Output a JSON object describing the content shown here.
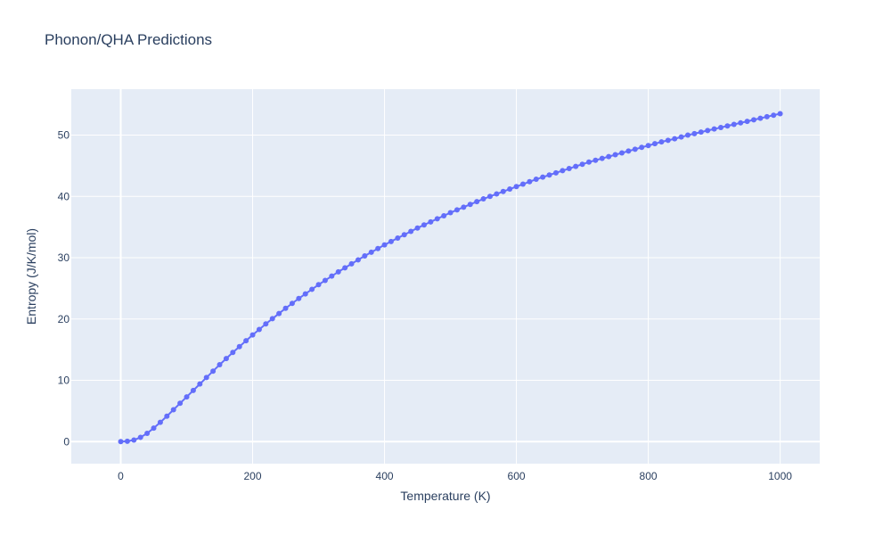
{
  "chart_data": {
    "type": "line",
    "title": "Phonon/QHA Predictions",
    "xlabel": "Temperature (K)",
    "ylabel": "Entropy (J/K/mol)",
    "xlim": [
      -75,
      1060
    ],
    "ylim": [
      -3.6,
      57.5
    ],
    "xticks": [
      0,
      200,
      400,
      600,
      800,
      1000
    ],
    "yticks": [
      0,
      10,
      20,
      30,
      40,
      50
    ],
    "grid": true,
    "legend": "none",
    "colors": {
      "plot_bg": "#e5ecf6",
      "grid": "#ffffff",
      "series": "#636efa",
      "text": "#2a3f5f"
    },
    "series": [
      {
        "markers": true,
        "x": [
          0,
          10,
          20,
          30,
          40,
          50,
          60,
          70,
          80,
          90,
          100,
          110,
          120,
          130,
          140,
          150,
          160,
          170,
          180,
          190,
          200,
          210,
          220,
          230,
          240,
          250,
          260,
          270,
          280,
          290,
          300,
          310,
          320,
          330,
          340,
          350,
          360,
          370,
          380,
          390,
          400,
          410,
          420,
          430,
          440,
          450,
          460,
          470,
          480,
          490,
          500,
          510,
          520,
          530,
          540,
          550,
          560,
          570,
          580,
          590,
          600,
          610,
          620,
          630,
          640,
          650,
          660,
          670,
          680,
          690,
          700,
          710,
          720,
          730,
          740,
          750,
          760,
          770,
          780,
          790,
          800,
          810,
          820,
          830,
          840,
          850,
          860,
          870,
          880,
          890,
          900,
          910,
          920,
          930,
          940,
          950,
          960,
          970,
          980,
          990,
          1000
        ],
        "values": [
          0,
          0.05,
          0.25,
          0.7,
          1.35,
          2.2,
          3.15,
          4.15,
          5.2,
          6.25,
          7.3,
          8.35,
          9.4,
          10.45,
          11.5,
          12.55,
          13.55,
          14.55,
          15.5,
          16.45,
          17.4,
          18.3,
          19.2,
          20.05,
          20.9,
          21.75,
          22.55,
          23.35,
          24.1,
          24.85,
          25.6,
          26.3,
          27.0,
          27.7,
          28.35,
          29.0,
          29.65,
          30.3,
          30.9,
          31.5,
          32.1,
          32.65,
          33.2,
          33.75,
          34.3,
          34.85,
          35.35,
          35.85,
          36.35,
          36.85,
          37.35,
          37.8,
          38.25,
          38.7,
          39.15,
          39.6,
          40.0,
          40.4,
          40.8,
          41.2,
          41.6,
          42.0,
          42.4,
          42.8,
          43.15,
          43.5,
          43.85,
          44.2,
          44.55,
          44.9,
          45.25,
          45.6,
          45.9,
          46.2,
          46.5,
          46.8,
          47.1,
          47.4,
          47.7,
          48.0,
          48.3,
          48.6,
          48.9,
          49.15,
          49.4,
          49.7,
          50.0,
          50.25,
          50.5,
          50.75,
          51.0,
          51.25,
          51.5,
          51.75,
          52.0,
          52.25,
          52.5,
          52.75,
          53.0,
          53.25,
          53.5
        ]
      }
    ]
  }
}
